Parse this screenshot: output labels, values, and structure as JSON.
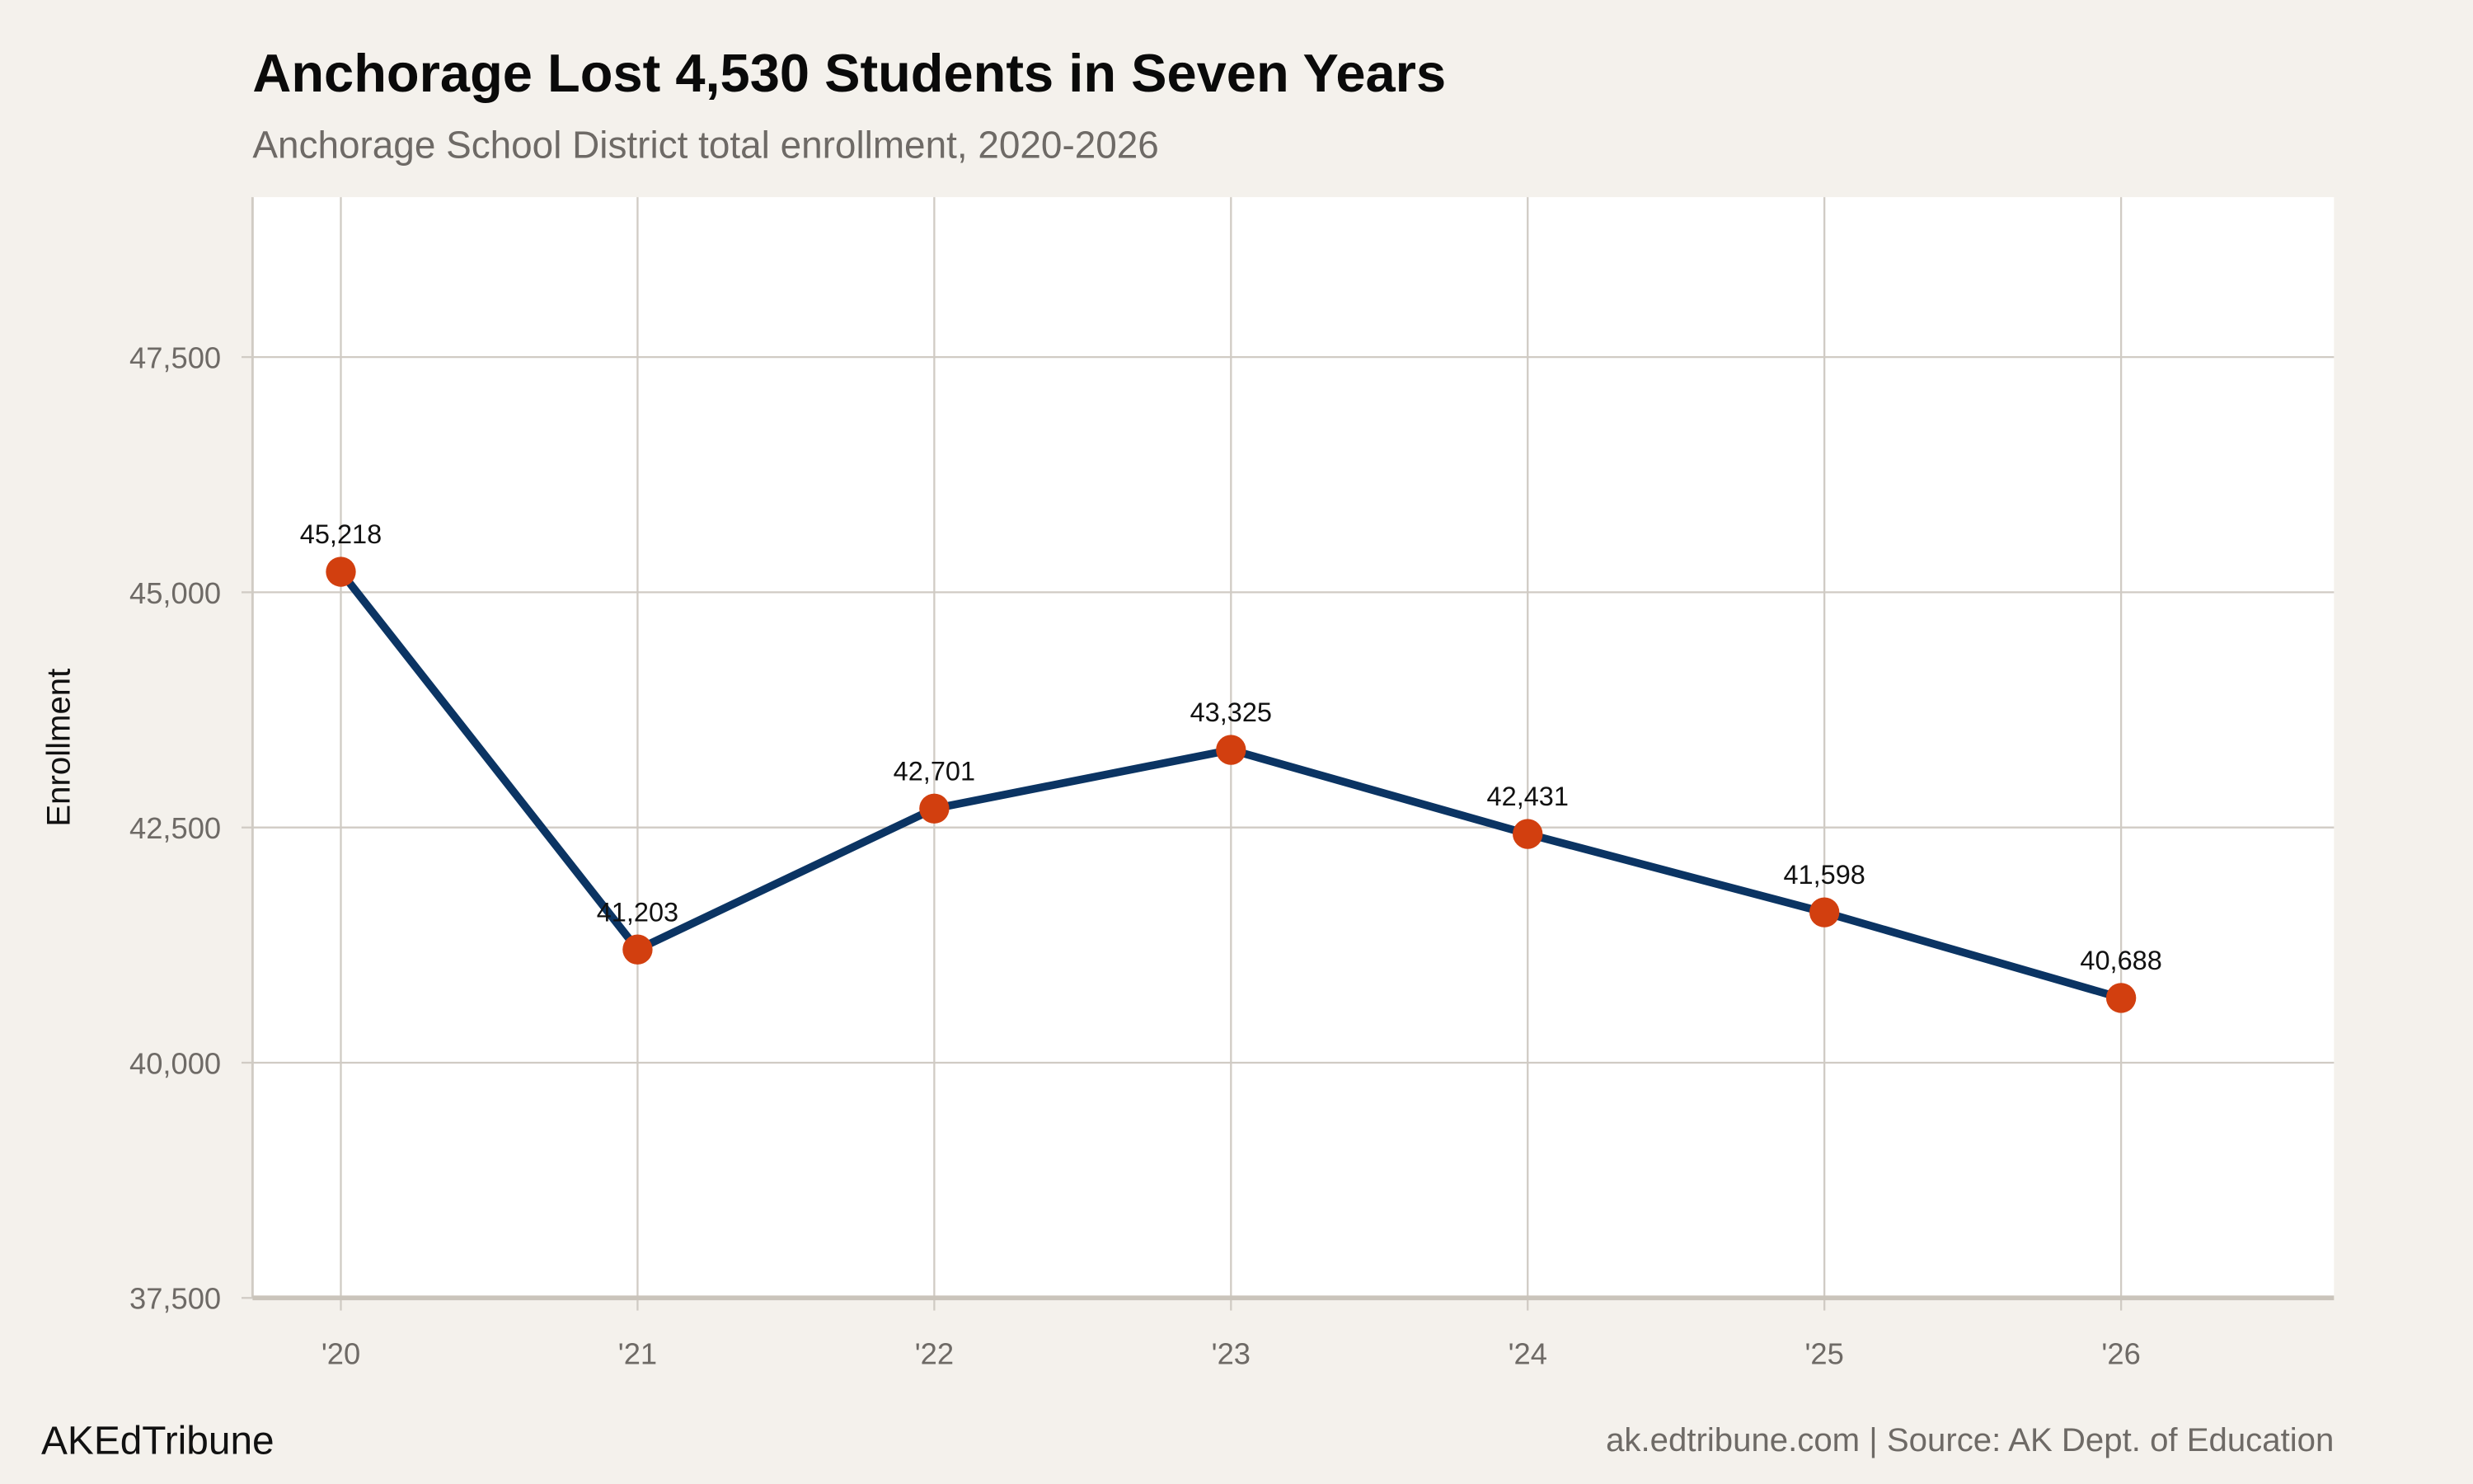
{
  "header": {
    "title": "Anchorage Lost 4,530 Students in Seven Years",
    "subtitle": "Anchorage School District total enrollment, 2020-2026"
  },
  "footer": {
    "brand": "AKEdTribune",
    "source": "ak.edtribune.com | Source: AK Dept. of Education"
  },
  "colors": {
    "background": "#f4f1ec",
    "panel": "#ffffff",
    "grid": "#d0cbc4",
    "line": "#0b3463",
    "point": "#d23f0f"
  },
  "chart_data": {
    "type": "line",
    "title": "Anchorage Lost 4,530 Students in Seven Years",
    "subtitle": "Anchorage School District total enrollment, 2020-2026",
    "xlabel": "",
    "ylabel": "Enrollment",
    "categories": [
      "'20",
      "'21",
      "'22",
      "'23",
      "'24",
      "'25",
      "'26"
    ],
    "values": [
      45218,
      41203,
      42701,
      43325,
      42431,
      41598,
      40688
    ],
    "data_labels": [
      "45,218",
      "41,203",
      "42,701",
      "43,325",
      "42,431",
      "41,598",
      "40,688"
    ],
    "yticks": [
      37500,
      40000,
      42500,
      45000,
      47500
    ],
    "ytick_labels": [
      "37,500",
      "40,000",
      "42,500",
      "45,000",
      "47,500"
    ],
    "ylim": [
      37500,
      49200
    ],
    "grid": true,
    "legend": "none"
  }
}
